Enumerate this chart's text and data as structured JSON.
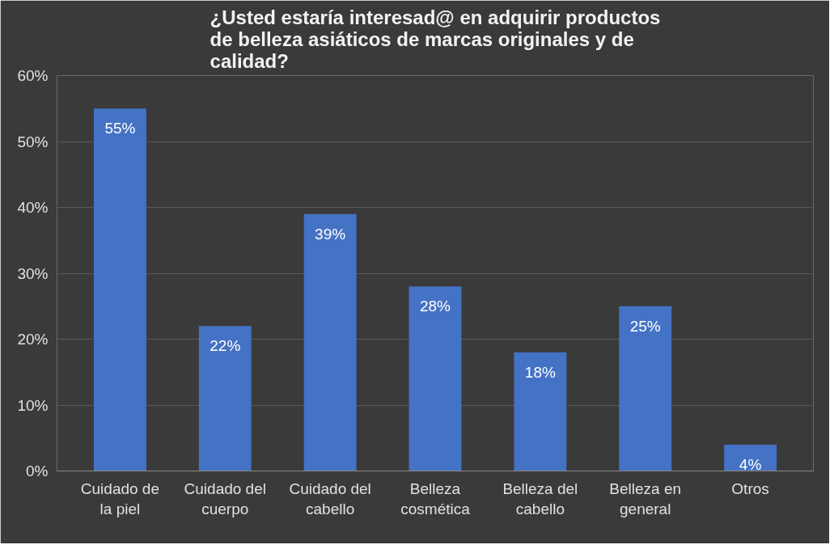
{
  "chart_data": {
    "type": "bar",
    "title": "¿Usted estaría interesad@ en adquirir productos de belleza asiáticos de marcas originales y de calidad?",
    "categories": [
      "Cuidado de la piel",
      "Cuidado del cuerpo",
      "Cuidado del cabello",
      "Belleza cosmética",
      "Belleza del cabello",
      "Belleza en general",
      "Otros"
    ],
    "values": [
      55,
      22,
      39,
      28,
      18,
      25,
      4
    ],
    "value_labels": [
      "55%",
      "22%",
      "39%",
      "28%",
      "18%",
      "25%",
      "4%"
    ],
    "color": "#4472c4",
    "ylim": [
      0,
      60
    ],
    "yticks": [
      {
        "value": 0,
        "label": "0%"
      },
      {
        "value": 10,
        "label": "10%"
      },
      {
        "value": 20,
        "label": "20%"
      },
      {
        "value": 30,
        "label": "30%"
      },
      {
        "value": 40,
        "label": "40%"
      },
      {
        "value": 50,
        "label": "50%"
      },
      {
        "value": 60,
        "label": "60%"
      }
    ],
    "grid": "y"
  }
}
